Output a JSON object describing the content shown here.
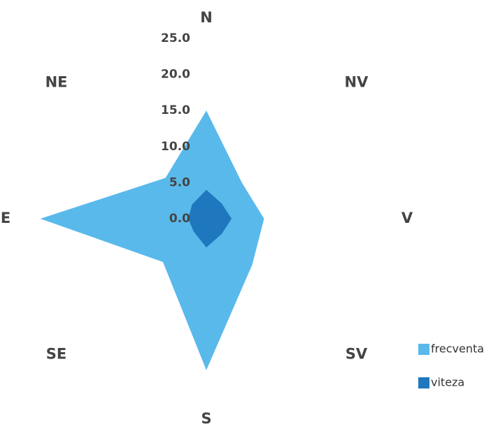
{
  "chart_data": {
    "type": "radar",
    "categories": [
      "N",
      "NV",
      "V",
      "SV",
      "S",
      "SE",
      "E",
      "NE"
    ],
    "series": [
      {
        "name": "frecventa",
        "color": "#5ab9eb",
        "values": [
          15,
          7,
          8,
          9,
          21,
          8.5,
          23,
          8
        ]
      },
      {
        "name": "viteza",
        "color": "#1f78be",
        "values": [
          4,
          3,
          3.5,
          3,
          4,
          2.5,
          2.5,
          2.8
        ]
      }
    ],
    "ylim": [
      0,
      25
    ],
    "yticks": [
      {
        "value": 0,
        "label": "0.0"
      },
      {
        "value": 5,
        "label": "5.0"
      },
      {
        "value": 10,
        "label": "10.0"
      },
      {
        "value": 15,
        "label": "15.0"
      },
      {
        "value": 20,
        "label": "20.0"
      },
      {
        "value": 25,
        "label": "25.0"
      }
    ],
    "grid": false,
    "legend": "bottom-right"
  }
}
